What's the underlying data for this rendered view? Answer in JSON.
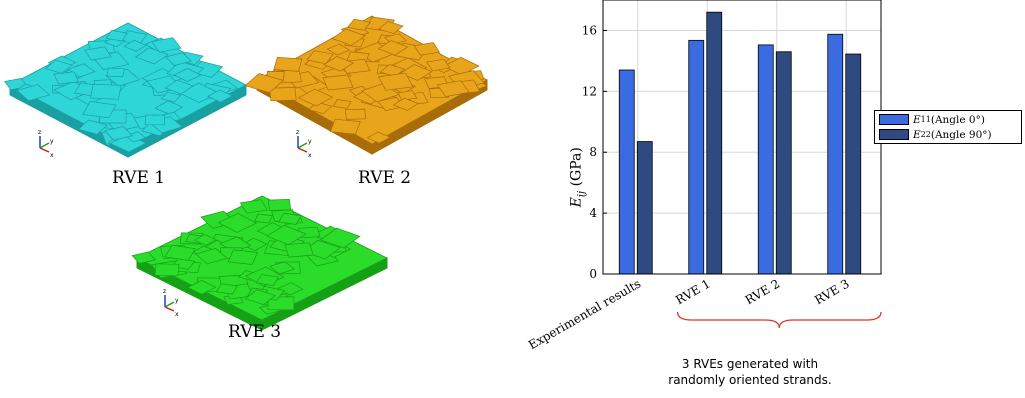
{
  "rve_panels": [
    {
      "label": "RVE 1",
      "color": "#2fd6d8",
      "edge": "#1a9fa3",
      "axis_labels": [
        "z",
        "y",
        "x"
      ]
    },
    {
      "label": "RVE 2",
      "color": "#e8a51c",
      "edge": "#a86d08",
      "axis_labels": [
        "z",
        "y",
        "x"
      ]
    },
    {
      "label": "RVE 3",
      "color": "#2bdc2b",
      "edge": "#16a016",
      "axis_labels": [
        "z",
        "y",
        "x"
      ]
    }
  ],
  "chart_data": {
    "type": "bar",
    "categories": [
      "Experimental results",
      "RVE 1",
      "RVE 2",
      "RVE 3"
    ],
    "series": [
      {
        "name": "E11 (Angle 0°)",
        "name_main": "E",
        "name_sub": "11",
        "name_rest": " (Angle 0°)",
        "color": "#3a6be0",
        "values": [
          13.4,
          15.35,
          15.05,
          15.75
        ]
      },
      {
        "name": "E22 (Angle 90°)",
        "name_main": "E",
        "name_sub": "22",
        "name_rest": " (Angle 90°)",
        "color": "#2e4a80",
        "values": [
          8.7,
          17.2,
          14.6,
          14.45
        ]
      }
    ],
    "ylabel": "E_ij (GPa)",
    "ylabel_main": "E",
    "ylabel_sub": "ij",
    "ylabel_rest": " (GPa)",
    "ylim": [
      0,
      18
    ],
    "yticks": [
      0,
      4,
      8,
      12,
      16
    ],
    "grid": true,
    "legend_position": "right",
    "annotation": {
      "line1": "3 RVEs generated with",
      "line2": "randomly oriented strands.",
      "brace_color": "#e0352b"
    }
  }
}
